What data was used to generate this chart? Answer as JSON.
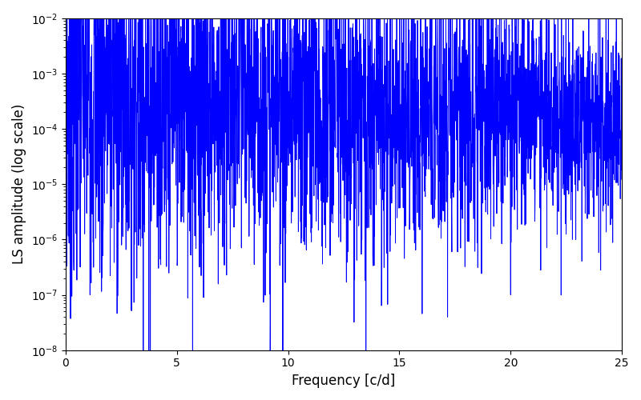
{
  "line_color": "#0000FF",
  "xlabel": "Frequency [c/d]",
  "ylabel": "LS amplitude (log scale)",
  "xlim": [
    0,
    25
  ],
  "ylim": [
    1e-08,
    0.01
  ],
  "title": "",
  "line_width": 0.7,
  "background_color": "#ffffff",
  "figsize": [
    8.0,
    5.0
  ],
  "dpi": 100,
  "num_points": 3000,
  "freq_max": 25.0,
  "seed": 7
}
